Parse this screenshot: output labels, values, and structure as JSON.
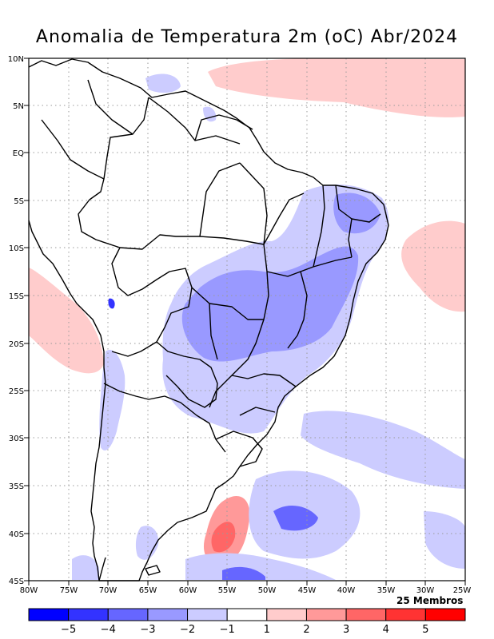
{
  "title": "Anomalia de Temperatura 2m (oC) Abr/2024",
  "members_label": "25 Membros",
  "lat_labels": [
    "10N",
    "5N",
    "EQ",
    "5S",
    "10S",
    "15S",
    "20S",
    "25S",
    "30S",
    "35S",
    "40S",
    "45S"
  ],
  "lon_labels": [
    "80W",
    "75W",
    "70W",
    "65W",
    "60W",
    "55W",
    "50W",
    "45W",
    "40W",
    "35W",
    "30W",
    "25W"
  ],
  "colorbar": {
    "colors": [
      "#0000ff",
      "#3333ff",
      "#6666ff",
      "#9999ff",
      "#ccccff",
      "#ffffff",
      "#ffcccc",
      "#ff9999",
      "#ff6666",
      "#ff3333",
      "#ff0000"
    ],
    "labels": [
      "-5",
      "-4",
      "-3",
      "-2",
      "-1",
      "1",
      "2",
      "3",
      "4",
      "5"
    ]
  }
}
